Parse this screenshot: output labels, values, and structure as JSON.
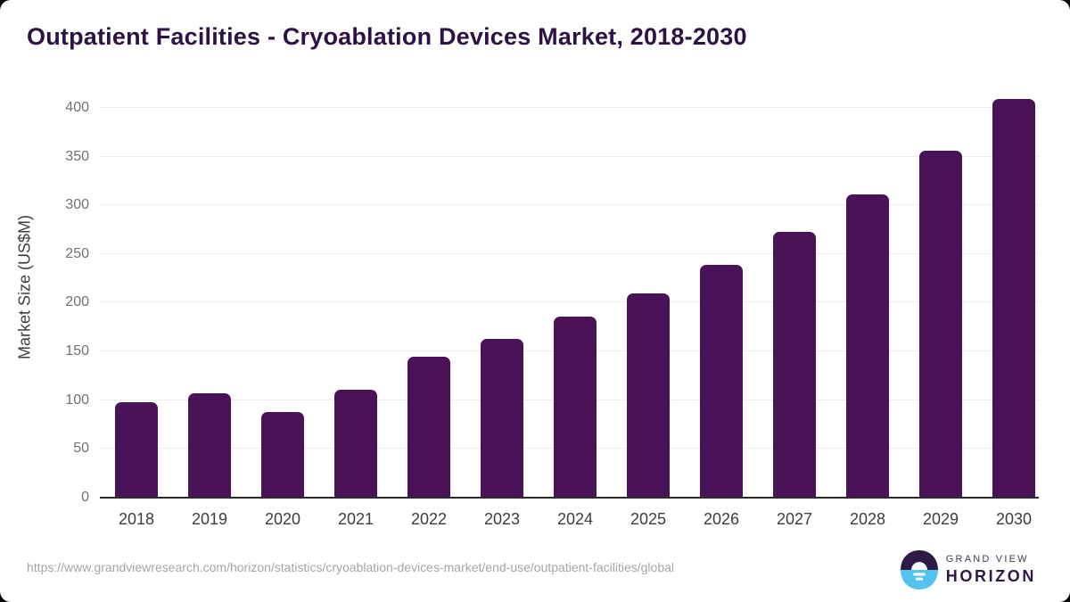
{
  "page": {
    "title": "Outpatient Facilities - Cryoablation Devices Market, 2018-2030",
    "footer_url": "https://www.grandviewresearch.com/horizon/statistics/cryoablation-devices-market/end-use/outpatient-facilities/global",
    "brand": {
      "line1": "GRAND VIEW",
      "line2": "HORIZON"
    }
  },
  "colors": {
    "bar": "#4a1259",
    "title": "#2d1245",
    "gridline": "#ececec",
    "baseline": "#2b2b2b",
    "tick_label": "#717171",
    "x_label": "#3d3d3d",
    "footer_text": "#a5a5a5",
    "logo_top": "#2e1a47",
    "logo_bottom": "#55c3ef"
  },
  "chart_data": {
    "type": "bar",
    "title": "Outpatient Facilities - Cryoablation Devices Market, 2018-2030",
    "xlabel": "",
    "ylabel": "Market Size (US$M)",
    "categories": [
      "2018",
      "2019",
      "2020",
      "2021",
      "2022",
      "2023",
      "2024",
      "2025",
      "2026",
      "2027",
      "2028",
      "2029",
      "2030"
    ],
    "values": [
      98,
      107,
      88,
      111,
      145,
      163,
      186,
      210,
      239,
      273,
      311,
      356,
      409
    ],
    "ylim": [
      0,
      420
    ],
    "yticks": [
      0,
      50,
      100,
      150,
      200,
      250,
      300,
      350,
      400
    ],
    "grid": "horizontal",
    "legend": "none",
    "bar_color": "#4a1259"
  }
}
